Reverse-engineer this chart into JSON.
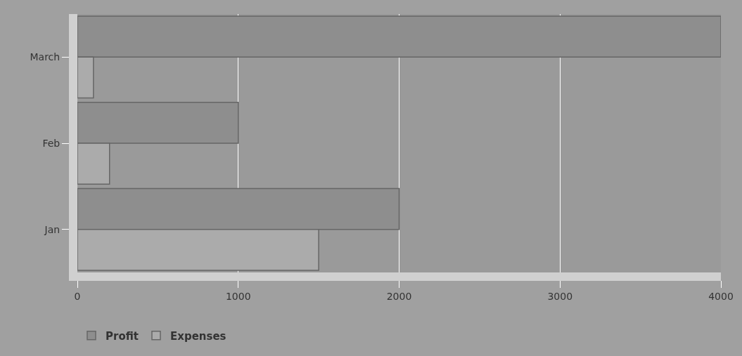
{
  "chart_data": {
    "type": "bar",
    "orientation": "horizontal",
    "categories": [
      "March",
      "Feb",
      "Jan"
    ],
    "series": [
      {
        "name": "Profit",
        "color": "#8e8e8e",
        "values": [
          4000,
          1000,
          2000
        ]
      },
      {
        "name": "Expenses",
        "color": "#ababab",
        "values": [
          100,
          200,
          1500
        ]
      }
    ],
    "xlim": [
      0,
      4000
    ],
    "xticks": [
      0,
      1000,
      2000,
      3000,
      4000
    ],
    "grid": "x",
    "legend": "bottom left"
  }
}
